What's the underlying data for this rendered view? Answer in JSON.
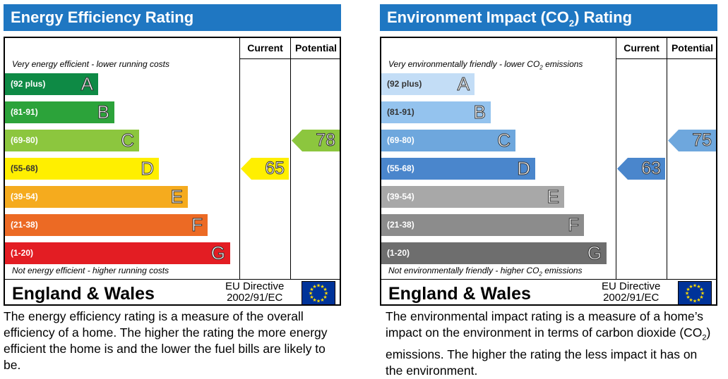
{
  "chart_data": [
    {
      "type": "bar",
      "title": "Energy Efficiency Rating",
      "columns": [
        "Current",
        "Potential"
      ],
      "note_top": "Very energy efficient - lower running costs",
      "note_bottom": "Not energy efficient - higher running costs",
      "categories": [
        "A",
        "B",
        "C",
        "D",
        "E",
        "F",
        "G"
      ],
      "ranges": [
        "(92 plus)",
        "(81-91)",
        "(69-80)",
        "(55-68)",
        "(39-54)",
        "(21-38)",
        "(1-20)"
      ],
      "band_colors": [
        "#0e8a45",
        "#2ca33a",
        "#8cc63e",
        "#ffef00",
        "#f5ab1e",
        "#ec6a24",
        "#e31d23"
      ],
      "current": {
        "value": 65,
        "band": "D",
        "color": "#ffef00"
      },
      "potential": {
        "value": 78,
        "band": "C",
        "color": "#8cc63e"
      },
      "region": "England & Wales",
      "directive": "EU Directive",
      "directive_code": "2002/91/EC",
      "description": "The energy efficiency rating is a measure of the overall efficiency of a home. The higher the rating the more energy efficient the home is and the lower the fuel bills are likely to be."
    },
    {
      "type": "bar",
      "title": "Environment Impact (CO2) Rating",
      "title_parts": [
        "Environment Impact (CO",
        "2",
        ") Rating"
      ],
      "columns": [
        "Current",
        "Potential"
      ],
      "note_top_parts": [
        "Very environmentally friendly - lower CO",
        "2",
        " emissions"
      ],
      "note_bottom_parts": [
        "Not environmentally friendly - higher CO",
        "2",
        " emissions"
      ],
      "categories": [
        "A",
        "B",
        "C",
        "D",
        "E",
        "F",
        "G"
      ],
      "ranges": [
        "(92 plus)",
        "(81-91)",
        "(69-80)",
        "(55-68)",
        "(39-54)",
        "(21-38)",
        "(1-20)"
      ],
      "band_colors": [
        "#c3ddf6",
        "#94c3ee",
        "#6ea7dd",
        "#4a86cc",
        "#a8a8a8",
        "#8c8c8c",
        "#6e6e6e"
      ],
      "current": {
        "value": 63,
        "band": "D",
        "color": "#4a86cc"
      },
      "potential": {
        "value": 75,
        "band": "C",
        "color": "#6ea7dd"
      },
      "region": "England & Wales",
      "directive": "EU Directive",
      "directive_code": "2002/91/EC",
      "description_parts": [
        "The environmental impact rating is a measure of a home’s impact on the environment in terms of carbon dioxide (CO",
        "2",
        ") emissions. The higher the rating the less impact it has on the environment."
      ]
    }
  ]
}
